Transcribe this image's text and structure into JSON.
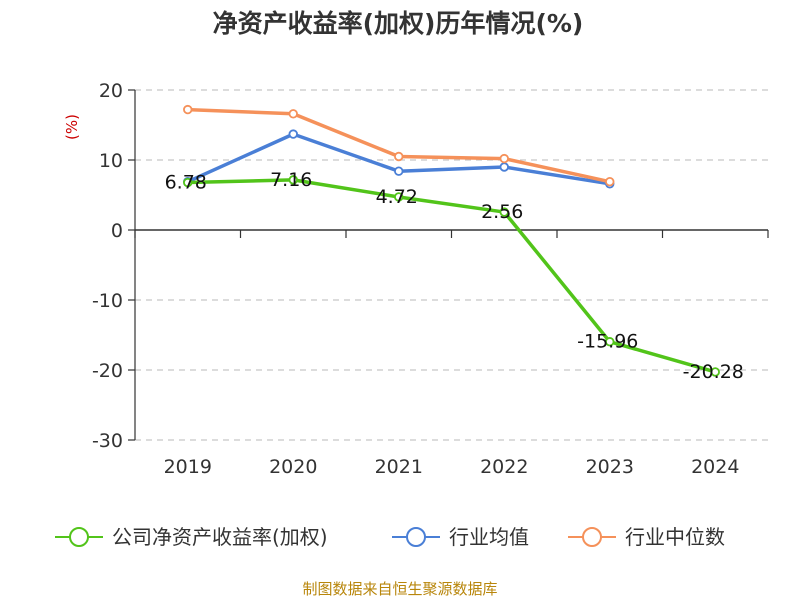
{
  "title": "净资产收益率(加权)历年情况(%)",
  "unit_label": "(%)",
  "source": "制图数据来自恒生聚源数据库",
  "chart_data": {
    "type": "line",
    "categories": [
      "2019",
      "2020",
      "2021",
      "2022",
      "2023",
      "2024"
    ],
    "ylim": [
      -30,
      20
    ],
    "yticks": [
      20,
      10,
      0,
      -10,
      -20,
      -30
    ],
    "grid": true,
    "legend_position": "bottom",
    "series": [
      {
        "name": "公司净资产收益率(加权)",
        "color": "#52c41a",
        "values": [
          6.78,
          7.16,
          4.72,
          2.56,
          -15.96,
          -20.28
        ],
        "labels": [
          "6.78",
          "7.16",
          "4.72",
          "2.56",
          "-15.96",
          "-20.28"
        ]
      },
      {
        "name": "行业均值",
        "color": "#4a7fd6",
        "values": [
          6.9,
          13.7,
          8.4,
          9.0,
          6.6,
          null
        ]
      },
      {
        "name": "行业中位数",
        "color": "#f5915a",
        "values": [
          17.2,
          16.6,
          10.5,
          10.2,
          6.9,
          null
        ]
      }
    ]
  }
}
